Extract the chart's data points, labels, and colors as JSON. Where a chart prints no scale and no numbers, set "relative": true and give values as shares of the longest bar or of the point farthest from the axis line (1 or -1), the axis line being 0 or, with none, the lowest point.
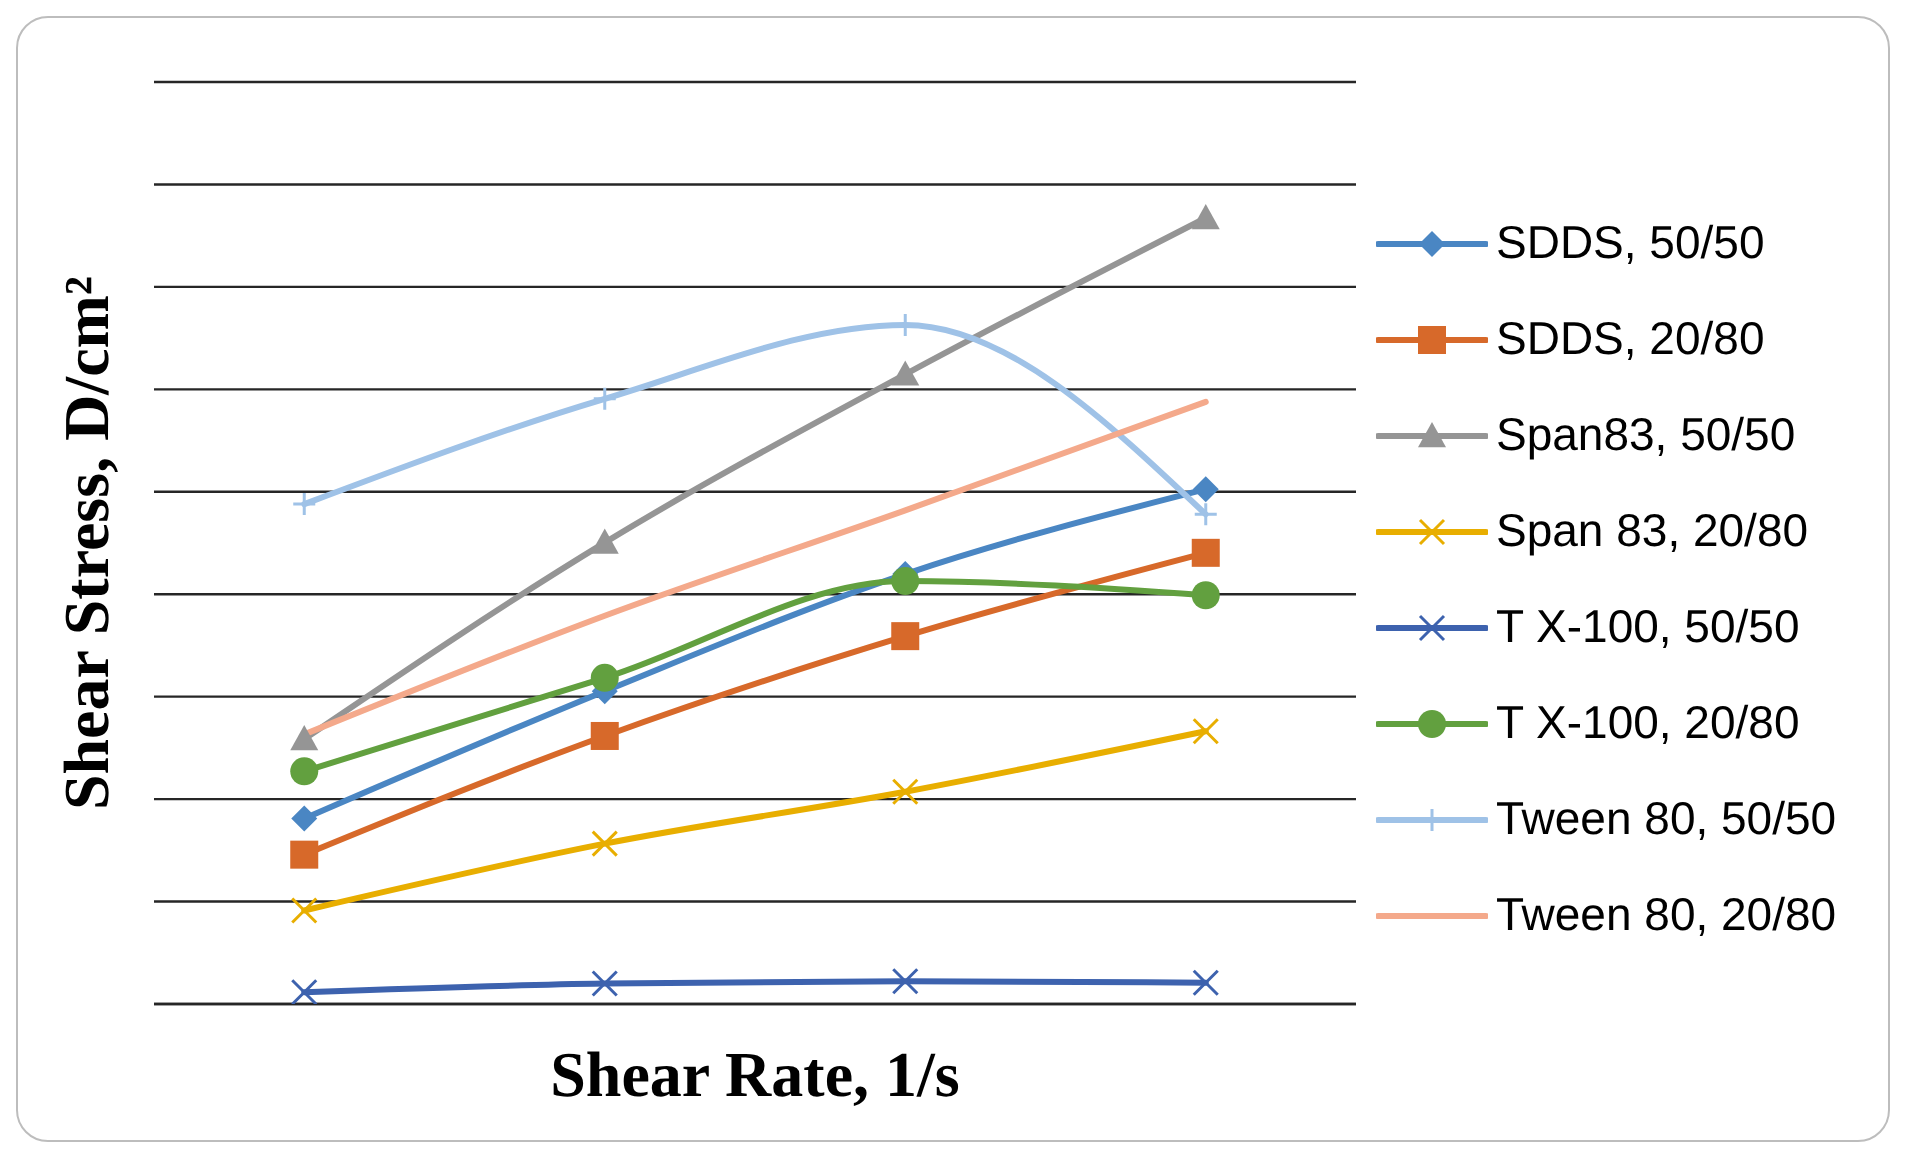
{
  "chart_data": {
    "type": "line",
    "relative": true,
    "ylabel": "Shear Stress, D/cm²",
    "xlabel": "Shear Rate, 1/s",
    "categories": [
      null,
      null,
      null,
      null
    ],
    "grid": "y",
    "legend": "right",
    "series": [
      {
        "name": "SDDS, 50/50",
        "color": "#4a86c3",
        "marker": "diamond",
        "values": [
          0.236,
          0.398,
          0.547,
          0.655
        ]
      },
      {
        "name": "SDDS, 20/80",
        "color": "#d7692a",
        "marker": "square",
        "values": [
          0.19,
          0.341,
          0.468,
          0.574
        ]
      },
      {
        "name": "Span83, 50/50",
        "color": "#959595",
        "marker": "triangle",
        "values": [
          0.337,
          0.587,
          0.801,
          1
        ]
      },
      {
        "name": "Span 83, 20/80",
        "color": "#e8ae00",
        "marker": "cross",
        "values": [
          0.119,
          0.204,
          0.27,
          0.347
        ]
      },
      {
        "name": "T X-100, 50/50",
        "color": "#3d62ae",
        "marker": "cross",
        "values": [
          0.015,
          0.026,
          0.029,
          0.027
        ]
      },
      {
        "name": "T X-100, 20/80",
        "color": "#62a03f",
        "marker": "circle",
        "values": [
          0.296,
          0.415,
          0.538,
          0.52
        ]
      },
      {
        "name": "Tween 80, 50/50",
        "color": "#9fc2e7",
        "marker": "plus",
        "values": [
          0.636,
          0.77,
          0.864,
          0.623
        ]
      },
      {
        "name": "Tween 80, 20/80",
        "color": "#f4a98b",
        "marker": "none",
        "values": [
          0.343,
          0.494,
          0.628,
          0.766
        ]
      }
    ]
  }
}
